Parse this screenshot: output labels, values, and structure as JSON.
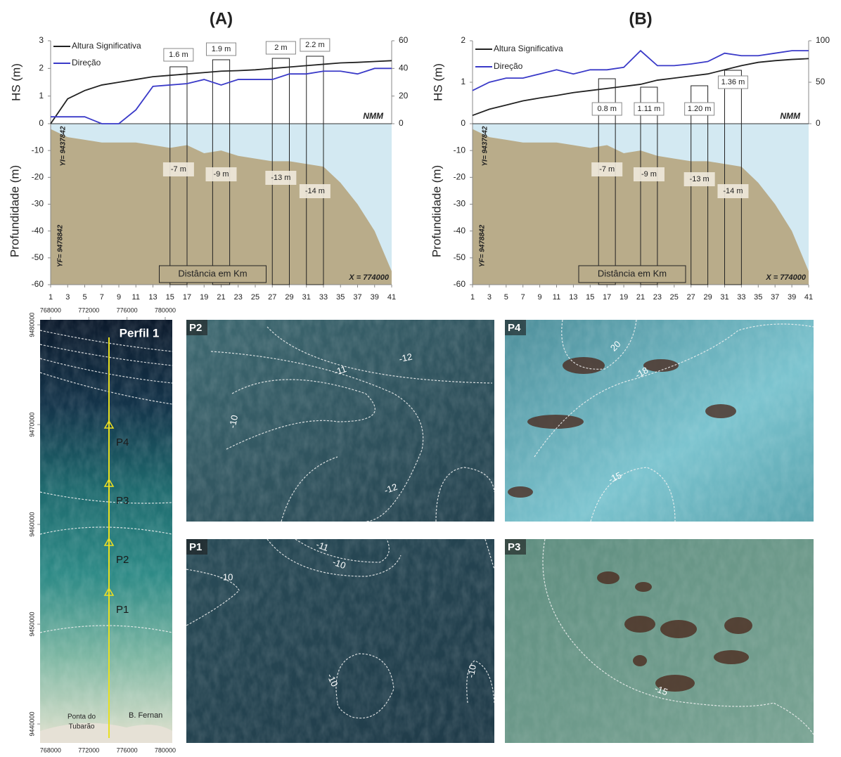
{
  "chart_data": [
    {
      "type": "line",
      "title": "(A)",
      "x": [
        1,
        3,
        5,
        7,
        9,
        11,
        13,
        15,
        17,
        19,
        21,
        23,
        25,
        27,
        29,
        31,
        33,
        35,
        37,
        39,
        41
      ],
      "xlim": [
        1,
        41
      ],
      "xticks": [
        1,
        3,
        5,
        7,
        9,
        11,
        13,
        15,
        17,
        19,
        21,
        23,
        25,
        27,
        29,
        31,
        33,
        35,
        37,
        39,
        41
      ],
      "xlabel": "Distância em Km",
      "ylabel": "HS (m)",
      "ylim": [
        0,
        3
      ],
      "yticks": [
        0,
        1,
        2,
        3
      ],
      "y2lim": [
        0,
        60
      ],
      "y2ticks": [
        0,
        20,
        40,
        60
      ],
      "series": [
        {
          "name": "Altura Significativa",
          "color": "#222222",
          "values": [
            0,
            0.9,
            1.2,
            1.4,
            1.5,
            1.6,
            1.7,
            1.75,
            1.8,
            1.85,
            1.9,
            1.92,
            1.95,
            2.0,
            2.05,
            2.1,
            2.15,
            2.2,
            2.22,
            2.25,
            2.28
          ]
        },
        {
          "name": "Direção",
          "color": "#3a3ac8",
          "axis": "y2",
          "values": [
            5,
            5,
            5,
            0,
            0,
            10,
            27,
            28,
            29,
            32,
            28,
            32,
            32,
            32,
            36,
            36,
            38,
            38,
            36,
            40,
            40
          ]
        }
      ],
      "depth": {
        "ylabel": "Profundidade (m)",
        "ylim": [
          -60,
          0
        ],
        "yticks": [
          0,
          -10,
          -20,
          -30,
          -40,
          -50,
          -60
        ],
        "color": "#b9ac8a",
        "water_color": "#d3e9f2",
        "values": [
          -2,
          -5,
          -6,
          -7,
          -7,
          -7,
          -8,
          -9,
          -8,
          -11,
          -10,
          -12,
          -13,
          -14,
          -14,
          -15,
          -16,
          -22,
          -30,
          -40,
          -55
        ]
      },
      "windows": [
        {
          "x": [
            15,
            17
          ],
          "hs_label": "1.6 m",
          "depth_label": "-7 m"
        },
        {
          "x": [
            20,
            22
          ],
          "hs_label": "1.9 m",
          "depth_label": "-9 m"
        },
        {
          "x": [
            27,
            29
          ],
          "hs_label": "2 m",
          "depth_label": "-13 m"
        },
        {
          "x": [
            31,
            33
          ],
          "hs_label": "2.2 m",
          "depth_label": "-14 m"
        }
      ],
      "annotations": {
        "datum": "NMM",
        "start": "YI= 9437842",
        "end": "YF= 9478842",
        "easting": "X = 774000"
      }
    },
    {
      "type": "line",
      "title": "(B)",
      "x": [
        1,
        3,
        5,
        7,
        9,
        11,
        13,
        15,
        17,
        19,
        21,
        23,
        25,
        27,
        29,
        31,
        33,
        35,
        37,
        39,
        41
      ],
      "xlim": [
        1,
        41
      ],
      "xticks": [
        1,
        3,
        5,
        7,
        9,
        11,
        13,
        15,
        17,
        19,
        21,
        23,
        25,
        27,
        29,
        31,
        33,
        35,
        37,
        39,
        41
      ],
      "xlabel": "Distância em Km",
      "ylabel": "HS (m)",
      "ylim": [
        0,
        2
      ],
      "yticks": [
        0,
        1,
        2
      ],
      "y2lim": [
        0,
        100
      ],
      "y2ticks": [
        0,
        50,
        100
      ],
      "series": [
        {
          "name": "Altura Significativa",
          "color": "#222222",
          "values": [
            0.2,
            0.35,
            0.45,
            0.55,
            0.62,
            0.68,
            0.75,
            0.8,
            0.85,
            0.9,
            0.95,
            1.05,
            1.1,
            1.15,
            1.2,
            1.3,
            1.4,
            1.48,
            1.52,
            1.55,
            1.57
          ]
        },
        {
          "name": "Direção",
          "color": "#3a3ac8",
          "axis": "y2",
          "values": [
            40,
            50,
            55,
            55,
            60,
            65,
            60,
            65,
            65,
            68,
            88,
            70,
            70,
            72,
            75,
            85,
            82,
            82,
            85,
            88,
            88
          ]
        }
      ],
      "depth": {
        "ylabel": "Profundidade (m)",
        "ylim": [
          -60,
          0
        ],
        "yticks": [
          0,
          -10,
          -20,
          -30,
          -40,
          -50,
          -60
        ],
        "color": "#b9ac8a",
        "water_color": "#d3e9f2",
        "values": [
          -2,
          -5,
          -6,
          -7,
          -7,
          -7,
          -8,
          -9,
          -8,
          -11,
          -10,
          -12,
          -13,
          -14,
          -14,
          -15,
          -16,
          -22,
          -30,
          -40,
          -55
        ]
      },
      "windows": [
        {
          "x": [
            16,
            18
          ],
          "hs_label": "0.8 m",
          "depth_label": "-7 m"
        },
        {
          "x": [
            21,
            23
          ],
          "hs_label": "1.11 m",
          "depth_label": "-9 m"
        },
        {
          "x": [
            27,
            29
          ],
          "hs_label": "1.20 m",
          "depth_label": "-13 m"
        },
        {
          "x": [
            31,
            33
          ],
          "hs_label": "1.36 m",
          "depth_label": "-14 m"
        }
      ],
      "annotations": {
        "datum": "NMM",
        "start": "YI= 9437842",
        "end": "YF= 9478842",
        "easting": "X = 774000"
      }
    }
  ],
  "map": {
    "title": "Perfil 1",
    "xticks": [
      768000,
      772000,
      776000,
      780000
    ],
    "yticks": [
      9480000,
      9470000,
      9460000,
      9450000,
      9440000
    ],
    "xlim": [
      766900,
      780740
    ],
    "ylim": [
      9438100,
      9480500
    ],
    "points": [
      "P4",
      "P3",
      "P2",
      "P1"
    ],
    "places": [
      "Ponta do",
      "Tubarão",
      "B. Fernan"
    ]
  },
  "images": [
    {
      "label": "P2",
      "contours": [
        "-12",
        "-11",
        "-10",
        "-12"
      ]
    },
    {
      "label": "P4",
      "contours": [
        "20",
        "-18",
        "-15"
      ]
    },
    {
      "label": "P1",
      "contours": [
        "-11",
        "-10",
        "-10",
        "-10",
        "-10"
      ]
    },
    {
      "label": "P3",
      "contours": [
        "-15"
      ]
    }
  ]
}
